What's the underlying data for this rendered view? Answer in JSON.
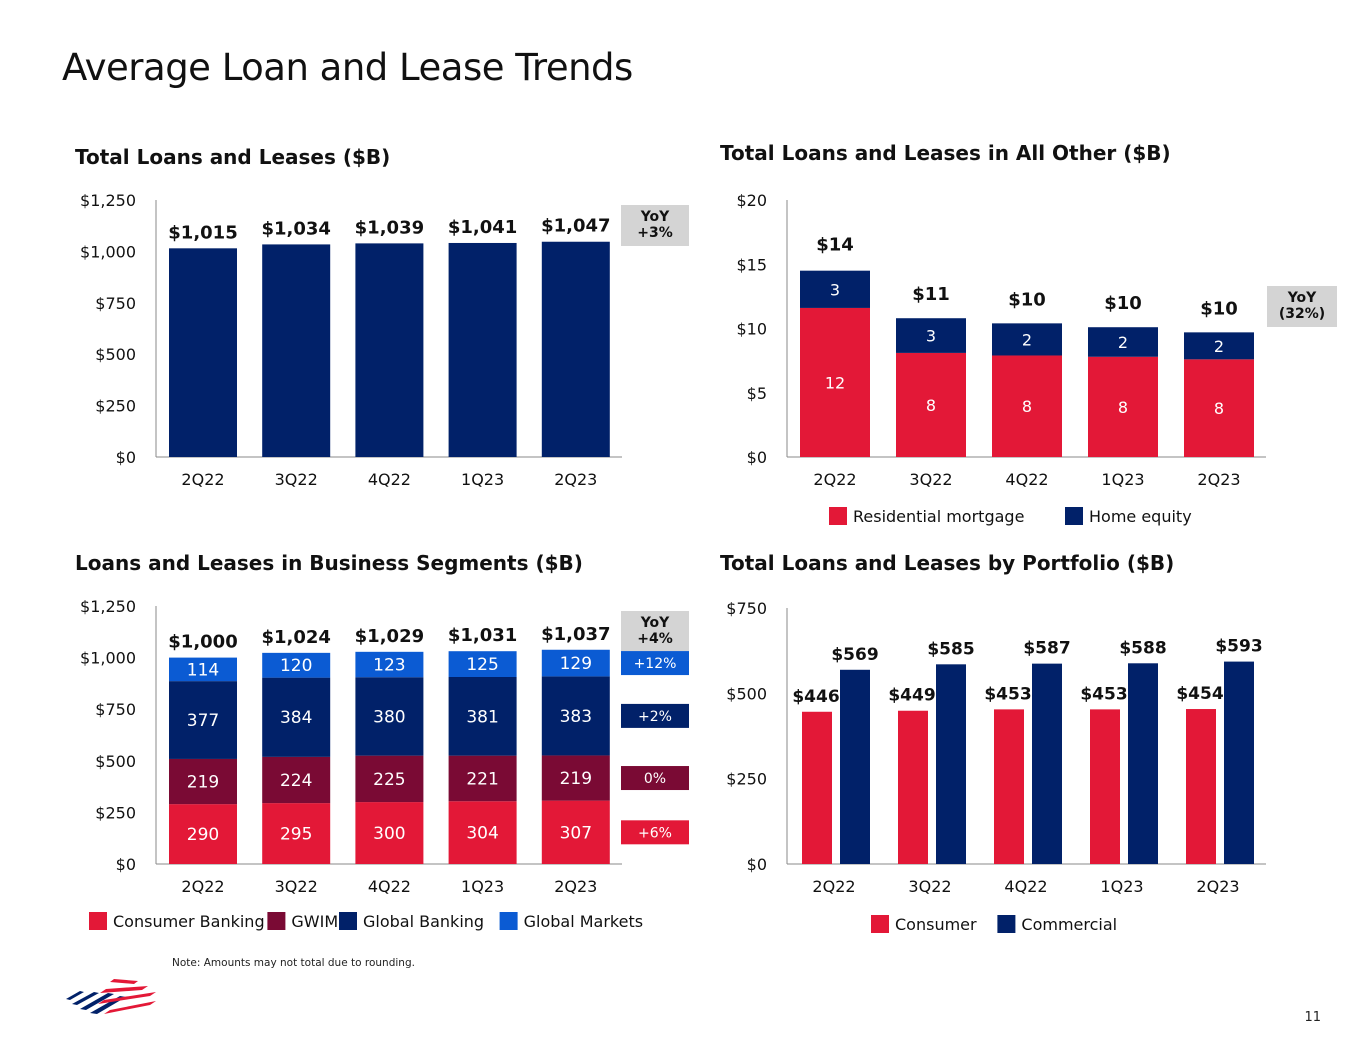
{
  "page": {
    "title": "Average Loan and Lease Trends",
    "note": "Note: Amounts may not total due to rounding.",
    "page_number": "11",
    "logo": "bank-of-america-flag-logo"
  },
  "colors": {
    "navy": "#012169",
    "red": "#e31837",
    "maroon": "#7a0a34",
    "blue": "#0b5bd3",
    "gray": "#d4d4d4",
    "axis": "#8a8a8a"
  },
  "chart_data": [
    {
      "id": "total",
      "type": "bar",
      "title": "Total Loans and Leases ($B)",
      "categories": [
        "2Q22",
        "3Q22",
        "4Q22",
        "1Q23",
        "2Q23"
      ],
      "values": [
        1015,
        1034,
        1039,
        1041,
        1047
      ],
      "total_labels": [
        "$1,015",
        "$1,034",
        "$1,039",
        "$1,041",
        "$1,047"
      ],
      "yticks": [
        "$0",
        "$250",
        "$500",
        "$750",
        "$1,000",
        "$1,250"
      ],
      "ylim": [
        0,
        1250
      ],
      "yoy": [
        "YoY",
        "+3%"
      ]
    },
    {
      "id": "allother",
      "type": "bar",
      "stacked": true,
      "title": "Total Loans and Leases in All Other ($B)",
      "categories": [
        "2Q22",
        "3Q22",
        "4Q22",
        "1Q23",
        "2Q23"
      ],
      "series": [
        {
          "name": "Residential mortgage",
          "values": [
            11.6,
            8.1,
            7.9,
            7.8,
            7.6
          ],
          "labels": [
            "12",
            "8",
            "8",
            "8",
            "8"
          ]
        },
        {
          "name": "Home equity",
          "values": [
            2.9,
            2.7,
            2.5,
            2.3,
            2.1
          ],
          "labels": [
            "3",
            "3",
            "2",
            "2",
            "2"
          ]
        }
      ],
      "total_labels": [
        "$14",
        "$11",
        "$10",
        "$10",
        "$10"
      ],
      "yticks": [
        "$0",
        "$5",
        "$10",
        "$15",
        "$20"
      ],
      "ylim": [
        0,
        20
      ],
      "yoy": [
        "YoY",
        "(32%)"
      ]
    },
    {
      "id": "segments",
      "type": "bar",
      "stacked": true,
      "title": "Loans and Leases in Business Segments ($B)",
      "categories": [
        "2Q22",
        "3Q22",
        "4Q22",
        "1Q23",
        "2Q23"
      ],
      "series": [
        {
          "name": "Consumer Banking",
          "values": [
            290,
            295,
            300,
            304,
            307
          ],
          "labels": [
            "290",
            "295",
            "300",
            "304",
            "307"
          ],
          "yoy": "+6%"
        },
        {
          "name": "GWIM",
          "values": [
            219,
            224,
            225,
            221,
            219
          ],
          "labels": [
            "219",
            "224",
            "225",
            "221",
            "219"
          ],
          "yoy": "0%"
        },
        {
          "name": "Global Banking",
          "values": [
            377,
            384,
            380,
            381,
            383
          ],
          "labels": [
            "377",
            "384",
            "380",
            "381",
            "383"
          ],
          "yoy": "+2%"
        },
        {
          "name": "Global Markets",
          "values": [
            114,
            120,
            123,
            125,
            129
          ],
          "labels": [
            "114",
            "120",
            "123",
            "125",
            "129"
          ],
          "yoy": "+12%"
        }
      ],
      "total_labels": [
        "$1,000",
        "$1,024",
        "$1,029",
        "$1,031",
        "$1,037"
      ],
      "yticks": [
        "$0",
        "$250",
        "$500",
        "$750",
        "$1,000",
        "$1,250"
      ],
      "ylim": [
        0,
        1250
      ],
      "yoy": [
        "YoY",
        "+4%"
      ]
    },
    {
      "id": "portfolio",
      "type": "bar",
      "grouped": true,
      "title": "Total Loans and Leases by Portfolio ($B)",
      "categories": [
        "2Q22",
        "3Q22",
        "4Q22",
        "1Q23",
        "2Q23"
      ],
      "series": [
        {
          "name": "Consumer",
          "values": [
            446,
            449,
            453,
            453,
            454
          ],
          "labels": [
            "$446",
            "$449",
            "$453",
            "$453",
            "$454"
          ]
        },
        {
          "name": "Commercial",
          "values": [
            569,
            585,
            587,
            588,
            593
          ],
          "labels": [
            "$569",
            "$585",
            "$587",
            "$588",
            "$593"
          ]
        }
      ],
      "yticks": [
        "$0",
        "$250",
        "$500",
        "$750"
      ],
      "ylim": [
        0,
        750
      ]
    }
  ]
}
